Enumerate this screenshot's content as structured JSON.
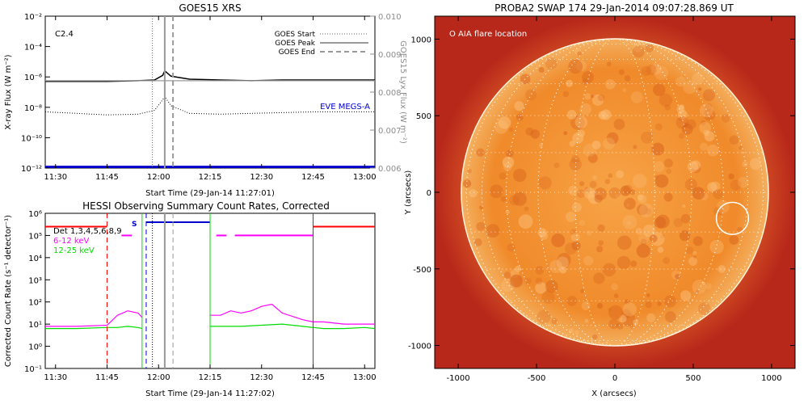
{
  "colors": {
    "goes_flux": "#000000",
    "lyx_flux": "#9a9a9a",
    "eve_megs": "#0000cc",
    "det": "#ff0000",
    "low_energy": "#ff00ff",
    "mid_energy": "#00dd00",
    "saa_bar": "#0000cc",
    "sun_outer": "#c2321e",
    "sun_disk": "#f08a2a"
  },
  "chart_data": [
    {
      "type": "line",
      "title": "GOES15 XRS",
      "xlabel": "Start Time (29-Jan-14 11:27:01)",
      "ylabel": "X-ray Flux (W m⁻²)",
      "y2label": "GOES15 Lyx Flux (W m⁻²)",
      "annotation": "C2.4",
      "yscale": "log",
      "ylim": [
        1e-12,
        0.01
      ],
      "y2lim": [
        0.006,
        0.01
      ],
      "x_ticks": [
        "11:30",
        "11:45",
        "12:00",
        "12:15",
        "12:30",
        "12:45",
        "13:00"
      ],
      "x_tick_values": [
        11.5,
        11.75,
        12.0,
        12.25,
        12.5,
        12.75,
        13.0
      ],
      "xlim": [
        11.45,
        13.05
      ],
      "y_ticks": [
        "10⁻²",
        "10⁻⁴",
        "10⁻⁶",
        "10⁻⁸",
        "10⁻¹⁰",
        "10⁻¹²"
      ],
      "y_tick_exps": [
        -2,
        -4,
        -6,
        -8,
        -10,
        -12
      ],
      "y2_ticks": [
        "0.010",
        "0.009",
        "0.008",
        "0.007",
        "0.006"
      ],
      "y2_tick_values": [
        0.01,
        0.009,
        0.008,
        0.007,
        0.006
      ],
      "legend": [
        {
          "label": "GOES Start",
          "style": "dotted"
        },
        {
          "label": "GOES Peak",
          "style": "solid"
        },
        {
          "label": "GOES End",
          "style": "dashed"
        }
      ],
      "eve_label": "EVE MEGS-A",
      "markers": {
        "start": 11.97,
        "peak": 12.03,
        "end": 12.07
      },
      "series": [
        {
          "x": [
            11.45,
            11.6,
            11.75,
            11.9,
            11.98,
            12.02,
            12.03,
            12.06,
            12.15,
            12.3,
            12.45,
            12.6,
            12.75,
            12.9,
            13.05
          ],
          "y_exp": [
            -6.3,
            -6.3,
            -6.3,
            -6.25,
            -6.2,
            -5.9,
            -5.6,
            -5.95,
            -6.15,
            -6.2,
            -6.25,
            -6.2,
            -6.2,
            -6.2,
            -6.2
          ]
        },
        {
          "x": [
            11.45,
            11.6,
            11.75,
            11.9,
            11.98,
            12.02,
            12.03,
            12.06,
            12.15,
            12.3,
            12.45,
            12.6,
            12.75,
            12.9,
            13.05
          ],
          "y_exp": [
            -8.3,
            -8.4,
            -8.5,
            -8.45,
            -8.2,
            -7.5,
            -7.3,
            -7.9,
            -8.4,
            -8.45,
            -8.4,
            -8.35,
            -8.3,
            -8.3,
            -8.3
          ]
        },
        {
          "x": [
            11.45,
            13.05
          ],
          "y2": [
            0.0083,
            0.0083
          ]
        },
        {
          "x": [
            11.45,
            13.05
          ],
          "y_exp": [
            -11.95,
            -11.95
          ]
        }
      ]
    },
    {
      "type": "line",
      "title": "HESSI Observing Summary Count Rates, Corrected",
      "xlabel": "Start Time (29-Jan-14 11:27:02)",
      "ylabel": "Corrected Count Rate (s⁻¹ detector⁻¹)",
      "yscale": "log",
      "ylim": [
        0.1,
        1000000.0
      ],
      "x_ticks": [
        "11:30",
        "11:45",
        "12:00",
        "12:15",
        "12:30",
        "12:45",
        "13:00"
      ],
      "x_tick_values": [
        11.5,
        11.75,
        12.0,
        12.25,
        12.5,
        12.75,
        13.0
      ],
      "xlim": [
        11.45,
        13.05
      ],
      "y_ticks": [
        "10⁶",
        "10⁵",
        "10⁴",
        "10³",
        "10²",
        "10¹",
        "10⁰",
        "10⁻¹"
      ],
      "y_tick_exps": [
        6,
        5,
        4,
        3,
        2,
        1,
        0,
        -1
      ],
      "legend": [
        {
          "label": "Det 1,3,4,5,6,8,9",
          "color": "#000000"
        },
        {
          "label": "6-12 keV",
          "color": "#ff00ff"
        },
        {
          "label": "12-25 keV",
          "color": "#00dd00"
        }
      ],
      "saa_label": "S",
      "series": [
        {
          "name": "6-12 keV",
          "x": [
            11.45,
            11.6,
            11.75,
            11.8,
            11.85,
            11.9,
            11.92,
            12.25,
            12.3,
            12.35,
            12.4,
            12.45,
            12.5,
            12.55,
            12.6,
            12.7,
            12.75,
            12.8,
            12.9,
            13.0,
            13.05
          ],
          "y_exp": [
            0.9,
            0.9,
            0.95,
            1.4,
            1.6,
            1.5,
            1.3,
            1.4,
            1.4,
            1.6,
            1.5,
            1.6,
            1.8,
            1.9,
            1.5,
            1.2,
            1.1,
            1.1,
            1.0,
            1.0,
            1.0
          ]
        },
        {
          "name": "12-25 keV",
          "x": [
            11.45,
            11.6,
            11.75,
            11.8,
            11.85,
            11.9,
            11.92,
            12.25,
            12.3,
            12.4,
            12.5,
            12.6,
            12.7,
            12.75,
            12.8,
            12.9,
            13.0,
            13.05
          ],
          "y_exp": [
            0.8,
            0.8,
            0.85,
            0.85,
            0.9,
            0.85,
            0.8,
            0.9,
            0.9,
            0.9,
            0.95,
            1.0,
            0.9,
            0.85,
            0.8,
            0.8,
            0.85,
            0.8
          ]
        },
        {
          "name": "Det 1,3,4,5,6,8,9",
          "x": [
            11.45,
            11.75
          ],
          "y_exp": [
            5.4,
            5.4
          ]
        },
        {
          "x": [
            12.75,
            13.05
          ],
          "y_exp": [
            5.4,
            5.4
          ]
        },
        {
          "x": [
            11.94,
            12.25
          ],
          "y_exp": [
            5.6,
            5.6
          ]
        }
      ],
      "vlines": [
        {
          "x": 11.75,
          "style": "dashed",
          "color": "#ff0000"
        },
        {
          "x": 12.75,
          "style": "solid",
          "color": "#ff0000"
        },
        {
          "x": 11.94,
          "style": "dashed",
          "color": "#0000cc"
        },
        {
          "x": 12.25,
          "style": "dashed",
          "color": "#0000cc"
        },
        {
          "x": 11.97,
          "style": "dotted",
          "color": "#000000"
        },
        {
          "x": 12.03,
          "style": "solid",
          "color": "#9a9a9a"
        },
        {
          "x": 12.07,
          "style": "dashed",
          "color": "#9a9a9a"
        },
        {
          "x": 11.92,
          "style": "solid",
          "color": "#00dd00"
        },
        {
          "x": 12.25,
          "style": "solid",
          "color": "#00dd00"
        }
      ]
    },
    {
      "type": "heatmap",
      "title": "PROBA2 SWAP 174 29-Jan-2014 09:07:28.869 UT",
      "xlabel": "X (arcsecs)",
      "ylabel": "Y (arcsecs)",
      "xlim": [
        -1150,
        1150
      ],
      "ylim": [
        -1150,
        1150
      ],
      "x_ticks": [
        "-1000",
        "-500",
        "0",
        "500",
        "1000"
      ],
      "x_tick_values": [
        -1000,
        -500,
        0,
        500,
        1000
      ],
      "y_ticks": [
        "1000",
        "500",
        "0",
        "-500",
        "-1000"
      ],
      "y_tick_values": [
        1000,
        500,
        0,
        -500,
        -1000
      ],
      "annotation": "O AIA flare location",
      "flare_location": {
        "x": 750,
        "y": -170
      },
      "solar_radius": 980
    }
  ]
}
